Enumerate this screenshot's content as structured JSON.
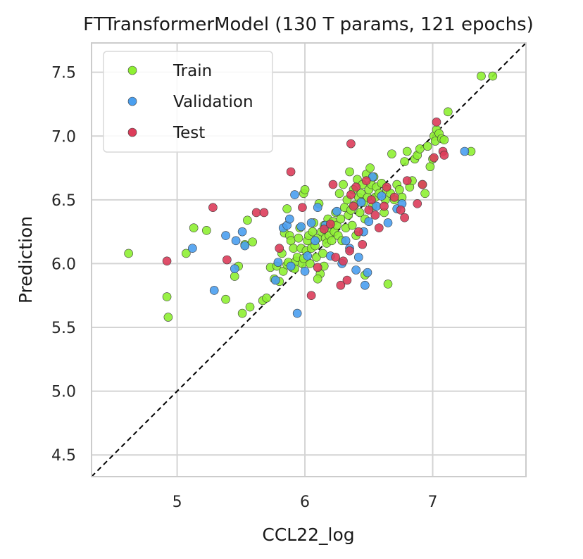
{
  "chart_data": {
    "type": "scatter",
    "title": "FTTransformerModel (130 T params, 121 epochs)",
    "xlabel": "CCL22_log",
    "ylabel": "Prediction",
    "xlim": [
      4.33,
      7.73
    ],
    "ylim": [
      4.33,
      7.73
    ],
    "xticks": [
      "5",
      "6",
      "7"
    ],
    "yticks": [
      "4.5",
      "5.0",
      "5.5",
      "6.0",
      "6.5",
      "7.0",
      "7.5"
    ],
    "xtick_values": [
      5,
      6,
      7
    ],
    "ytick_values": [
      4.5,
      5.0,
      5.5,
      6.0,
      6.5,
      7.0,
      7.5
    ],
    "grid": true,
    "legend_position": "top-left",
    "identity_line": true,
    "series": [
      {
        "name": "Train",
        "color": "#8ef032",
        "points": [
          [
            4.62,
            6.08
          ],
          [
            4.92,
            5.74
          ],
          [
            4.93,
            5.58
          ],
          [
            5.07,
            6.08
          ],
          [
            5.13,
            6.28
          ],
          [
            5.23,
            6.26
          ],
          [
            5.38,
            5.72
          ],
          [
            5.45,
            5.9
          ],
          [
            5.48,
            5.98
          ],
          [
            5.51,
            5.61
          ],
          [
            5.53,
            6.15
          ],
          [
            5.55,
            6.34
          ],
          [
            5.57,
            5.66
          ],
          [
            5.59,
            6.17
          ],
          [
            5.67,
            5.71
          ],
          [
            5.7,
            5.73
          ],
          [
            5.73,
            5.97
          ],
          [
            5.76,
            5.88
          ],
          [
            5.78,
            5.98
          ],
          [
            5.8,
            5.86
          ],
          [
            5.82,
            6.08
          ],
          [
            5.83,
            5.94
          ],
          [
            5.84,
            6.24
          ],
          [
            5.86,
            6.43
          ],
          [
            5.86,
            5.99
          ],
          [
            5.87,
            6.01
          ],
          [
            5.88,
            6.22
          ],
          [
            5.89,
            6.18
          ],
          [
            5.9,
            5.97
          ],
          [
            5.91,
            6.12
          ],
          [
            5.92,
            5.96
          ],
          [
            5.93,
            6.02
          ],
          [
            5.94,
            6.05
          ],
          [
            5.95,
            6.2
          ],
          [
            5.96,
            6.28
          ],
          [
            5.97,
            6.12
          ],
          [
            5.98,
            6.0
          ],
          [
            5.99,
            6.55
          ],
          [
            6.0,
            6.58
          ],
          [
            6.01,
            6.1
          ],
          [
            6.02,
            6.18
          ],
          [
            6.03,
            6.22
          ],
          [
            6.04,
            6.0
          ],
          [
            6.05,
            6.12
          ],
          [
            6.06,
            6.25
          ],
          [
            6.07,
            6.32
          ],
          [
            6.08,
            6.14
          ],
          [
            6.09,
            6.05
          ],
          [
            6.1,
            6.2
          ],
          [
            6.11,
            6.47
          ],
          [
            6.12,
            5.92
          ],
          [
            6.13,
            6.25
          ],
          [
            6.14,
            6.08
          ],
          [
            6.15,
            6.3
          ],
          [
            6.16,
            6.2
          ],
          [
            6.17,
            6.16
          ],
          [
            6.18,
            6.35
          ],
          [
            6.19,
            6.22
          ],
          [
            6.2,
            6.28
          ],
          [
            6.21,
            6.18
          ],
          [
            6.22,
            6.33
          ],
          [
            6.23,
            6.25
          ],
          [
            6.24,
            6.4
          ],
          [
            6.25,
            6.3
          ],
          [
            6.26,
            6.22
          ],
          [
            6.27,
            6.55
          ],
          [
            6.28,
            6.35
          ],
          [
            6.29,
            6.18
          ],
          [
            6.3,
            6.62
          ],
          [
            6.31,
            6.44
          ],
          [
            6.32,
            6.28
          ],
          [
            6.33,
            6.5
          ],
          [
            6.34,
            6.38
          ],
          [
            6.35,
            6.72
          ],
          [
            6.36,
            6.42
          ],
          [
            6.37,
            6.3
          ],
          [
            6.38,
            6.58
          ],
          [
            6.39,
            6.46
          ],
          [
            6.4,
            6.22
          ],
          [
            6.41,
            6.66
          ],
          [
            6.42,
            6.52
          ],
          [
            6.43,
            6.4
          ],
          [
            6.44,
            6.55
          ],
          [
            6.45,
            6.62
          ],
          [
            6.46,
            6.48
          ],
          [
            6.47,
            6.35
          ],
          [
            6.48,
            6.7
          ],
          [
            6.49,
            6.52
          ],
          [
            6.5,
            6.58
          ],
          [
            6.51,
            6.75
          ],
          [
            6.52,
            6.62
          ],
          [
            6.53,
            6.45
          ],
          [
            6.54,
            6.68
          ],
          [
            6.55,
            6.52
          ],
          [
            6.56,
            6.6
          ],
          [
            6.58,
            6.55
          ],
          [
            6.6,
            6.63
          ],
          [
            6.62,
            6.4
          ],
          [
            6.63,
            6.5
          ],
          [
            6.64,
            6.58
          ],
          [
            6.65,
            5.84
          ],
          [
            6.67,
            6.55
          ],
          [
            6.68,
            6.86
          ],
          [
            6.7,
            6.5
          ],
          [
            6.72,
            6.62
          ],
          [
            6.74,
            6.58
          ],
          [
            6.76,
            6.52
          ],
          [
            6.78,
            6.8
          ],
          [
            6.8,
            6.88
          ],
          [
            6.82,
            6.6
          ],
          [
            6.84,
            6.65
          ],
          [
            6.86,
            6.82
          ],
          [
            6.88,
            6.85
          ],
          [
            6.9,
            6.9
          ],
          [
            6.92,
            6.62
          ],
          [
            6.94,
            6.55
          ],
          [
            6.96,
            6.92
          ],
          [
            6.98,
            6.76
          ],
          [
            7.0,
            6.82
          ],
          [
            7.01,
            7.0
          ],
          [
            7.02,
            6.96
          ],
          [
            7.03,
            7.05
          ],
          [
            7.05,
            7.02
          ],
          [
            7.07,
            6.98
          ],
          [
            7.09,
            6.97
          ],
          [
            7.12,
            7.19
          ],
          [
            7.3,
            6.88
          ],
          [
            7.38,
            7.47
          ],
          [
            7.47,
            7.47
          ],
          [
            6.47,
            5.91
          ],
          [
            6.1,
            5.88
          ],
          [
            6.15,
            5.98
          ],
          [
            5.99,
            6.04
          ]
        ]
      },
      {
        "name": "Validation",
        "color": "#4a9fef",
        "points": [
          [
            5.12,
            6.12
          ],
          [
            5.29,
            5.79
          ],
          [
            5.38,
            6.22
          ],
          [
            5.45,
            5.96
          ],
          [
            5.46,
            6.18
          ],
          [
            5.51,
            6.25
          ],
          [
            5.53,
            6.14
          ],
          [
            5.77,
            5.87
          ],
          [
            5.79,
            6.01
          ],
          [
            5.83,
            6.28
          ],
          [
            5.86,
            6.3
          ],
          [
            5.88,
            6.35
          ],
          [
            5.89,
            5.98
          ],
          [
            5.92,
            6.54
          ],
          [
            5.94,
            5.61
          ],
          [
            5.97,
            6.29
          ],
          [
            6.0,
            5.94
          ],
          [
            6.02,
            6.06
          ],
          [
            6.05,
            6.32
          ],
          [
            6.08,
            6.18
          ],
          [
            6.1,
            6.44
          ],
          [
            6.16,
            6.3
          ],
          [
            6.2,
            6.06
          ],
          [
            6.25,
            6.41
          ],
          [
            6.29,
            6.0
          ],
          [
            6.32,
            6.18
          ],
          [
            6.35,
            6.12
          ],
          [
            6.4,
            5.95
          ],
          [
            6.42,
            6.05
          ],
          [
            6.44,
            6.48
          ],
          [
            6.46,
            6.25
          ],
          [
            6.47,
            5.83
          ],
          [
            6.49,
            5.93
          ],
          [
            6.5,
            6.33
          ],
          [
            6.53,
            6.68
          ],
          [
            6.56,
            6.45
          ],
          [
            6.6,
            6.53
          ],
          [
            6.65,
            6.32
          ],
          [
            6.72,
            6.43
          ],
          [
            6.76,
            6.47
          ],
          [
            7.25,
            6.88
          ]
        ]
      },
      {
        "name": "Test",
        "color": "#dc3c5a",
        "points": [
          [
            4.92,
            6.02
          ],
          [
            5.28,
            6.44
          ],
          [
            5.39,
            6.03
          ],
          [
            5.62,
            6.4
          ],
          [
            5.68,
            6.4
          ],
          [
            5.8,
            6.12
          ],
          [
            5.89,
            6.72
          ],
          [
            5.98,
            6.44
          ],
          [
            6.05,
            5.75
          ],
          [
            6.1,
            5.97
          ],
          [
            6.15,
            6.27
          ],
          [
            6.2,
            6.31
          ],
          [
            6.22,
            6.62
          ],
          [
            6.24,
            6.05
          ],
          [
            6.28,
            5.83
          ],
          [
            6.3,
            6.02
          ],
          [
            6.33,
            5.87
          ],
          [
            6.35,
            6.1
          ],
          [
            6.36,
            6.54
          ],
          [
            6.38,
            6.45
          ],
          [
            6.4,
            6.6
          ],
          [
            6.42,
            6.25
          ],
          [
            6.45,
            6.15
          ],
          [
            6.48,
            6.65
          ],
          [
            6.5,
            6.42
          ],
          [
            6.52,
            6.5
          ],
          [
            6.55,
            6.38
          ],
          [
            6.58,
            6.28
          ],
          [
            6.62,
            6.45
          ],
          [
            6.64,
            6.6
          ],
          [
            6.7,
            6.52
          ],
          [
            6.75,
            6.42
          ],
          [
            6.78,
            6.36
          ],
          [
            6.8,
            6.65
          ],
          [
            6.88,
            6.47
          ],
          [
            6.92,
            6.62
          ],
          [
            7.01,
            6.83
          ],
          [
            7.03,
            7.11
          ],
          [
            7.08,
            6.88
          ],
          [
            7.09,
            6.85
          ],
          [
            6.36,
            6.94
          ]
        ]
      }
    ]
  }
}
